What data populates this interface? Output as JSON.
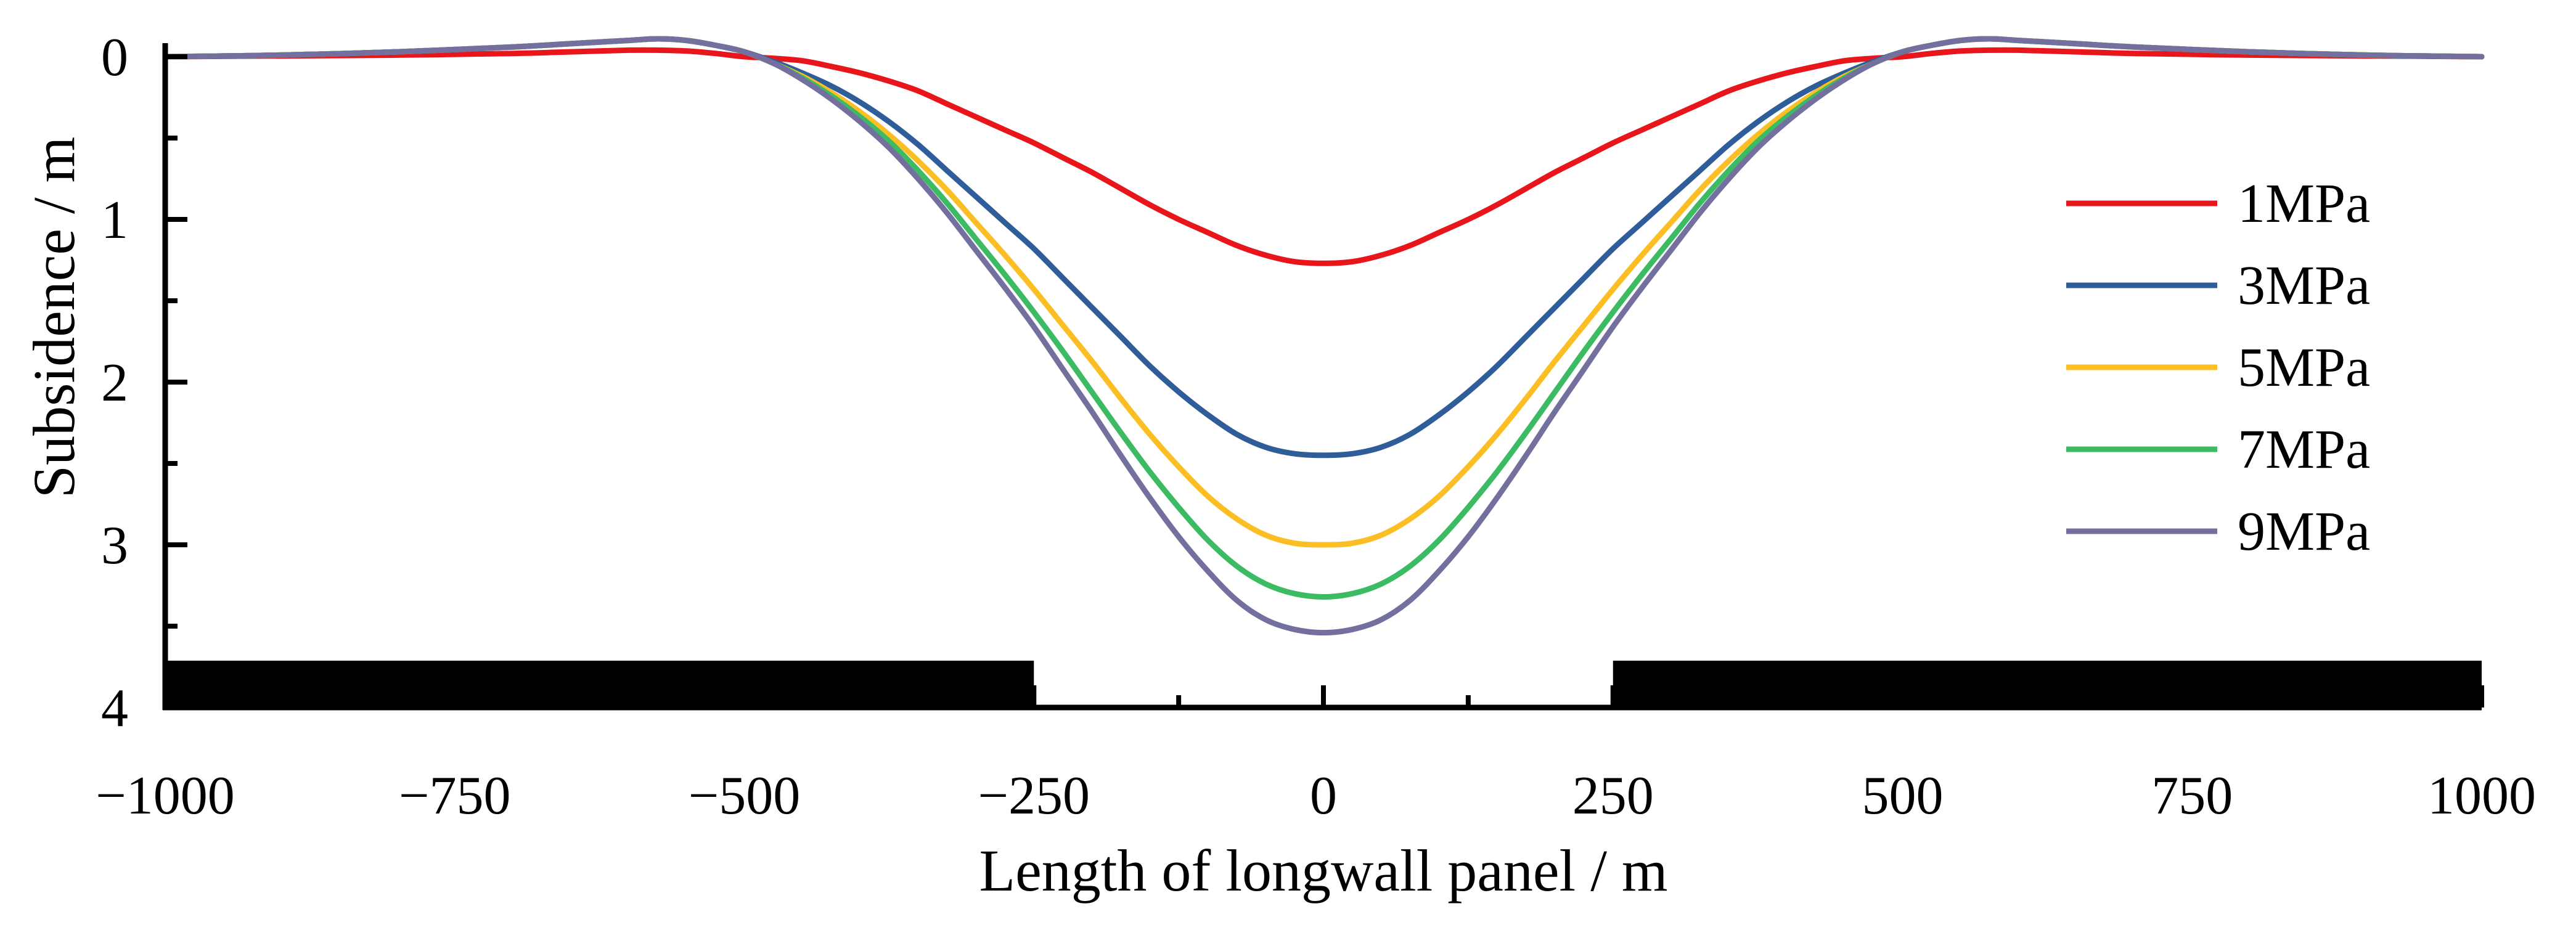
{
  "chart_data": {
    "type": "line",
    "title": "",
    "xlabel": "Length of longwall panel / m",
    "ylabel": "Subsidence / m",
    "xlim": [
      -1000,
      1000
    ],
    "ylim": [
      0,
      4
    ],
    "y_inverted": true,
    "x_ticks": [
      -1000,
      -750,
      -500,
      -250,
      0,
      250,
      500,
      750,
      1000
    ],
    "x_tick_labels": [
      "−1000",
      "−750",
      "−500",
      "−250",
      "0",
      "250",
      "500",
      "750",
      "1000"
    ],
    "y_ticks": [
      0,
      1,
      2,
      3,
      4
    ],
    "y_tick_labels": [
      "0",
      "1",
      "2",
      "3",
      "4"
    ],
    "legend_position": "right",
    "x": [
      -1000,
      -900,
      -800,
      -700,
      -650,
      -600,
      -575,
      -550,
      -525,
      -500,
      -475,
      -450,
      -425,
      -400,
      -375,
      -350,
      -325,
      -300,
      -275,
      -250,
      -225,
      -200,
      -175,
      -150,
      -125,
      -100,
      -75,
      -50,
      -25,
      0,
      25,
      50,
      75,
      100,
      125,
      150,
      175,
      200,
      225,
      250,
      275,
      300,
      325,
      350,
      375,
      400,
      425,
      450,
      475,
      500,
      525,
      550,
      575,
      600,
      650,
      700,
      800,
      900,
      1000
    ],
    "series": [
      {
        "name": "1MPa",
        "color": "#e8151b",
        "values": [
          0,
          -0.005,
          -0.01,
          -0.02,
          -0.03,
          -0.04,
          -0.04,
          -0.035,
          -0.02,
          0,
          0.01,
          0.025,
          0.06,
          0.1,
          0.15,
          0.21,
          0.29,
          0.37,
          0.45,
          0.53,
          0.62,
          0.71,
          0.81,
          0.91,
          1.0,
          1.08,
          1.16,
          1.22,
          1.26,
          1.27,
          1.26,
          1.22,
          1.16,
          1.08,
          1.0,
          0.91,
          0.81,
          0.71,
          0.62,
          0.53,
          0.45,
          0.37,
          0.29,
          0.21,
          0.15,
          0.1,
          0.06,
          0.025,
          0.01,
          0,
          -0.02,
          -0.035,
          -0.04,
          -0.04,
          -0.03,
          -0.02,
          -0.01,
          -0.005,
          0
        ]
      },
      {
        "name": "3MPa",
        "color": "#2f5d99",
        "values": [
          0,
          -0.01,
          -0.03,
          -0.06,
          -0.08,
          -0.1,
          -0.11,
          -0.1,
          -0.07,
          -0.03,
          0.03,
          0.1,
          0.18,
          0.28,
          0.4,
          0.54,
          0.7,
          0.86,
          1.02,
          1.18,
          1.36,
          1.54,
          1.72,
          1.9,
          2.06,
          2.2,
          2.32,
          2.4,
          2.44,
          2.45,
          2.44,
          2.4,
          2.32,
          2.2,
          2.06,
          1.9,
          1.72,
          1.54,
          1.36,
          1.18,
          1.02,
          0.86,
          0.7,
          0.54,
          0.4,
          0.28,
          0.18,
          0.1,
          0.03,
          -0.03,
          -0.07,
          -0.1,
          -0.11,
          -0.1,
          -0.08,
          -0.06,
          -0.03,
          -0.01,
          0
        ]
      },
      {
        "name": "5MPa",
        "color": "#fbbf25",
        "values": [
          0,
          -0.01,
          -0.03,
          -0.06,
          -0.08,
          -0.1,
          -0.11,
          -0.1,
          -0.07,
          -0.03,
          0.04,
          0.12,
          0.22,
          0.34,
          0.48,
          0.64,
          0.82,
          1.02,
          1.22,
          1.43,
          1.65,
          1.87,
          2.1,
          2.32,
          2.52,
          2.7,
          2.84,
          2.94,
          2.99,
          3.0,
          2.99,
          2.94,
          2.84,
          2.7,
          2.52,
          2.32,
          2.1,
          1.87,
          1.65,
          1.43,
          1.22,
          1.02,
          0.82,
          0.64,
          0.48,
          0.34,
          0.22,
          0.12,
          0.04,
          -0.03,
          -0.07,
          -0.1,
          -0.11,
          -0.1,
          -0.08,
          -0.06,
          -0.03,
          -0.01,
          0
        ]
      },
      {
        "name": "7MPa",
        "color": "#3dbb63",
        "values": [
          0,
          -0.01,
          -0.03,
          -0.06,
          -0.08,
          -0.1,
          -0.11,
          -0.1,
          -0.07,
          -0.03,
          0.04,
          0.13,
          0.24,
          0.37,
          0.52,
          0.7,
          0.9,
          1.12,
          1.34,
          1.57,
          1.81,
          2.06,
          2.31,
          2.55,
          2.77,
          2.97,
          3.13,
          3.24,
          3.3,
          3.32,
          3.3,
          3.24,
          3.13,
          2.97,
          2.77,
          2.55,
          2.31,
          2.06,
          1.81,
          1.57,
          1.34,
          1.12,
          0.9,
          0.7,
          0.52,
          0.37,
          0.24,
          0.13,
          0.04,
          -0.03,
          -0.07,
          -0.1,
          -0.11,
          -0.1,
          -0.08,
          -0.06,
          -0.03,
          -0.01,
          0
        ]
      },
      {
        "name": "9MPa",
        "color": "#73709f",
        "values": [
          0,
          -0.01,
          -0.03,
          -0.06,
          -0.08,
          -0.1,
          -0.11,
          -0.1,
          -0.07,
          -0.03,
          0.04,
          0.14,
          0.26,
          0.4,
          0.56,
          0.75,
          0.96,
          1.19,
          1.42,
          1.66,
          1.92,
          2.18,
          2.45,
          2.71,
          2.95,
          3.16,
          3.34,
          3.46,
          3.52,
          3.54,
          3.52,
          3.46,
          3.34,
          3.16,
          2.95,
          2.71,
          2.45,
          2.18,
          1.92,
          1.66,
          1.42,
          1.19,
          0.96,
          0.75,
          0.56,
          0.4,
          0.26,
          0.14,
          0.04,
          -0.03,
          -0.07,
          -0.1,
          -0.11,
          -0.1,
          -0.08,
          -0.06,
          -0.03,
          -0.01,
          0
        ]
      }
    ],
    "coal_pillars": [
      {
        "from": -1000,
        "to": -250
      },
      {
        "from": 250,
        "to": 1000
      }
    ]
  }
}
